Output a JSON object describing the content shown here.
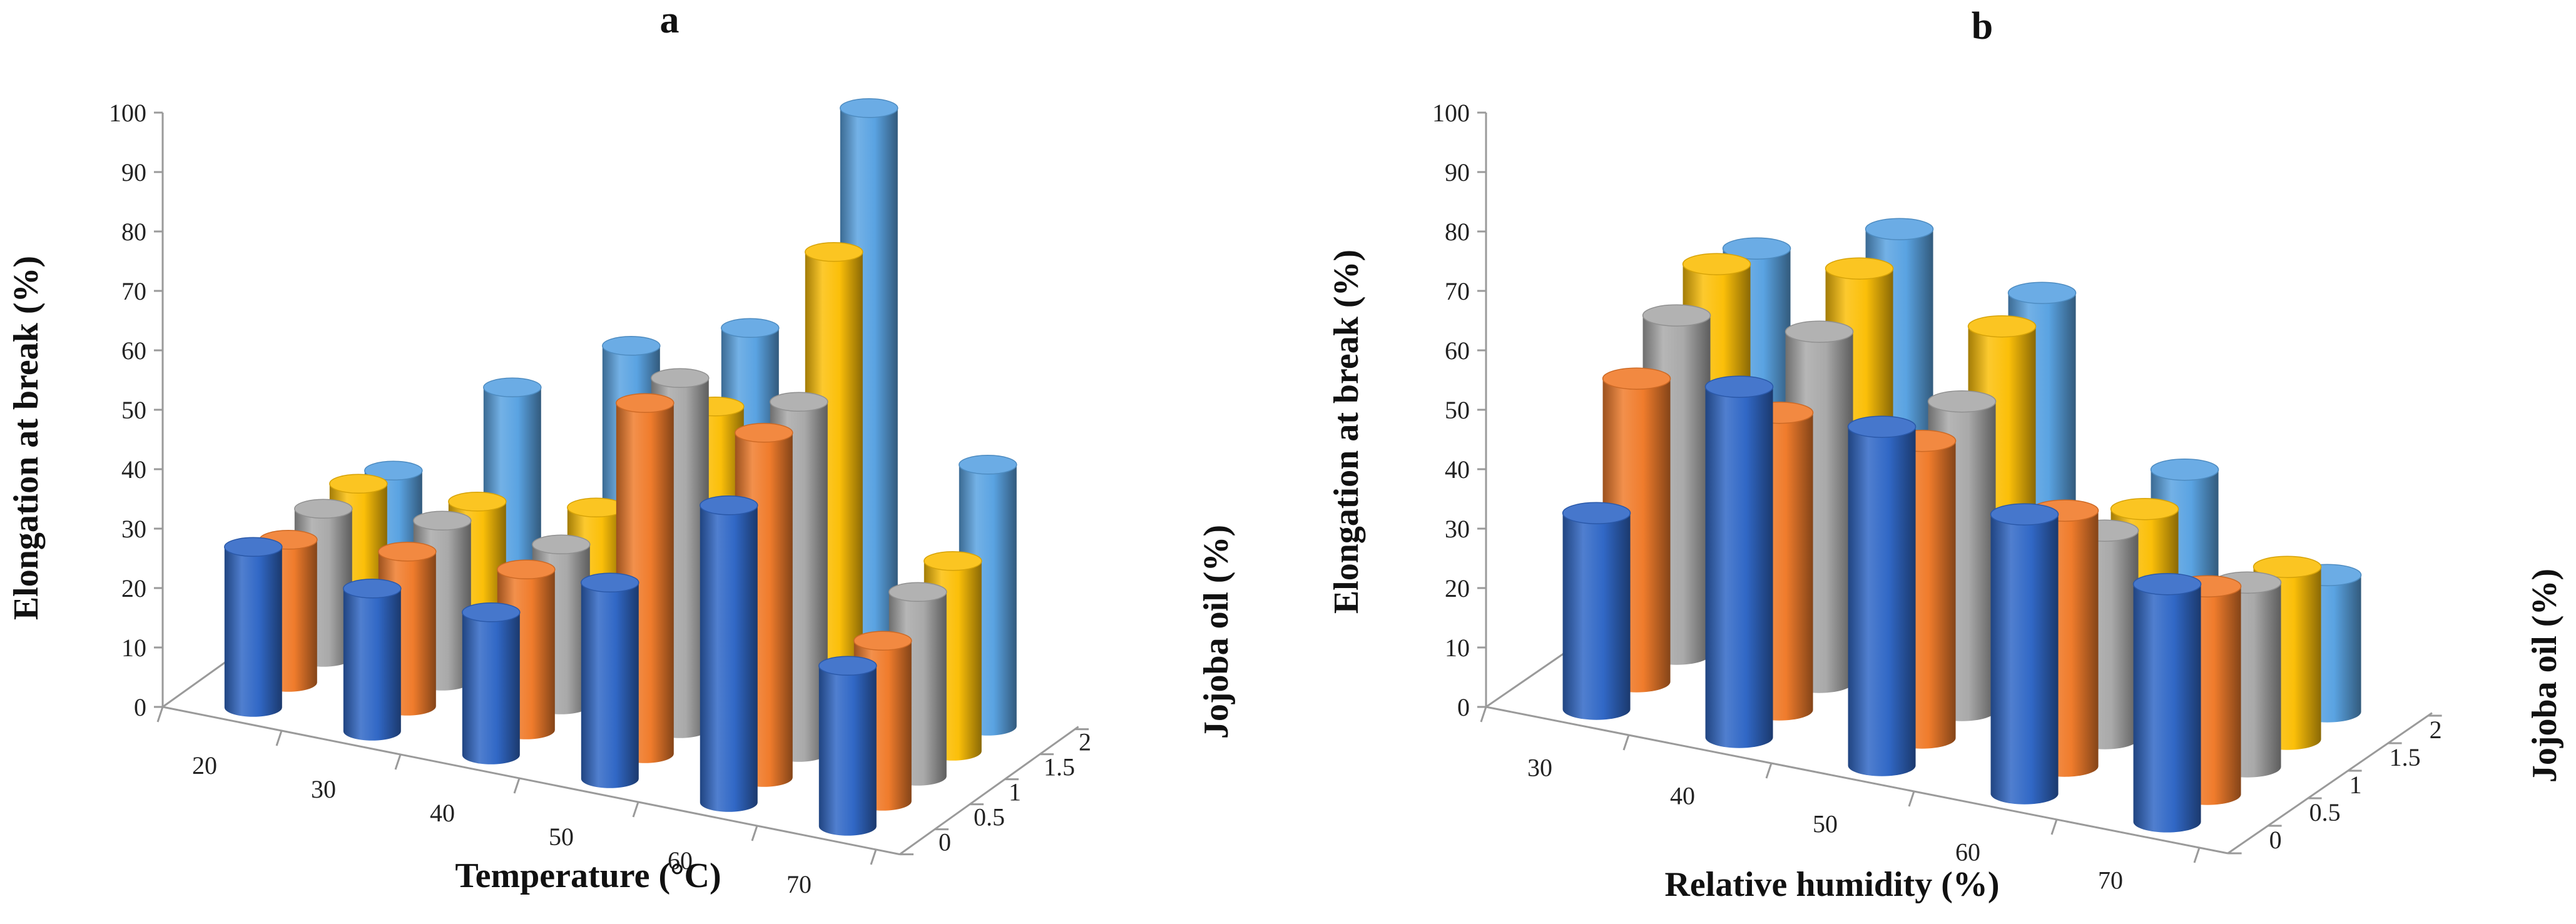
{
  "chart_data": [
    {
      "type": "bar",
      "title": "a",
      "xlabel": "Temperature (°C)",
      "ylabel": "Elongation at break (%)",
      "zlabel": "Jojoba oil (%)",
      "categories": [
        "20",
        "30",
        "40",
        "50",
        "60",
        "70"
      ],
      "yticks": [
        "0",
        "10",
        "20",
        "30",
        "40",
        "50",
        "60",
        "70",
        "80",
        "90",
        "100"
      ],
      "ylim": [
        0,
        100
      ],
      "series": [
        {
          "name": "0",
          "color": "#3168c6",
          "values": [
            27,
            24,
            24,
            33,
            50,
            27
          ]
        },
        {
          "name": "0.5",
          "color": "#f07c2c",
          "values": [
            24,
            26,
            27,
            59,
            58,
            27
          ]
        },
        {
          "name": "1",
          "color": "#a9a9a9",
          "values": [
            25,
            27,
            27,
            59,
            59,
            31
          ]
        },
        {
          "name": "1.5",
          "color": "#fbbf09",
          "values": [
            25,
            26,
            29,
            50,
            80,
            32
          ]
        },
        {
          "name": "2",
          "color": "#5aa3e2",
          "values": [
            23,
            41,
            52,
            59,
            100,
            44
          ]
        }
      ]
    },
    {
      "type": "bar",
      "title": "b",
      "xlabel": "Relative humidity (%)",
      "ylabel": "Elongation at break (%)",
      "zlabel": "Jojoba oil (%)",
      "categories": [
        "30",
        "40",
        "50",
        "60",
        "70"
      ],
      "yticks": [
        "0",
        "10",
        "20",
        "30",
        "40",
        "50",
        "60",
        "70",
        "80",
        "90",
        "100"
      ],
      "ylim": [
        0,
        100
      ],
      "series": [
        {
          "name": "0",
          "color": "#3168c6",
          "values": [
            33,
            59,
            57,
            47,
            40
          ]
        },
        {
          "name": "0.5",
          "color": "#f07c2c",
          "values": [
            51,
            50,
            50,
            43,
            35
          ]
        },
        {
          "name": "1",
          "color": "#a9a9a9",
          "values": [
            57,
            59,
            52,
            35,
            31
          ]
        },
        {
          "name": "1.5",
          "color": "#fbbf09",
          "values": [
            61,
            65,
            60,
            34,
            29
          ]
        },
        {
          "name": "2",
          "color": "#5aa3e2",
          "values": [
            59,
            67,
            61,
            36,
            23
          ]
        }
      ]
    }
  ]
}
